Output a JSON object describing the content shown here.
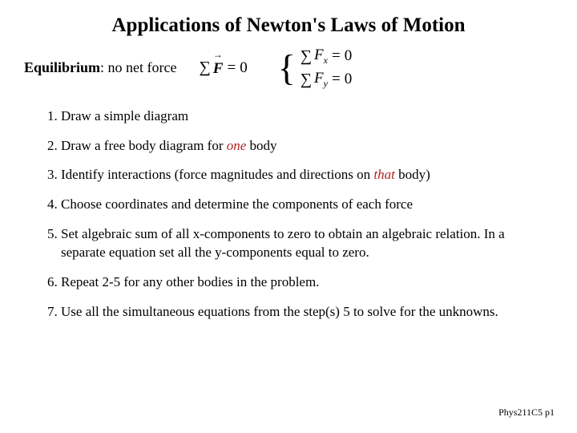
{
  "title": "Applications of Newton's Laws of Motion",
  "equilibrium": {
    "term": "Equilibrium",
    "rest": ": no net force"
  },
  "formula": {
    "sigma": "∑",
    "F": "F",
    "eq": "=",
    "zero": "0",
    "brace": "{",
    "Fx_label": "F",
    "Fx_sub": "x",
    "Fy_label": "F",
    "Fy_sub": "y"
  },
  "steps": [
    {
      "pre": "Draw a simple diagram",
      "emph": "",
      "post": ""
    },
    {
      "pre": "Draw a free body diagram for ",
      "emph": "one",
      "post": " body"
    },
    {
      "pre": "Identify interactions (force magnitudes and directions on ",
      "emph": "that",
      "post": " body)"
    },
    {
      "pre": "Choose coordinates and determine the components of each force",
      "emph": "",
      "post": ""
    },
    {
      "pre": "Set algebraic sum of all x-components to zero to obtain an algebraic relation. In a separate equation set all the y-components equal to zero.",
      "emph": "",
      "post": ""
    },
    {
      "pre": "Repeat 2-5 for any other bodies in the problem.",
      "emph": "",
      "post": ""
    },
    {
      "pre": "Use all the simultaneous equations from the step(s) 5 to solve for the unknowns.",
      "emph": "",
      "post": ""
    }
  ],
  "footer": "Phys211C5 p1",
  "colors": {
    "background": "#ffffff",
    "text": "#000000",
    "emphasis": "#b22222"
  },
  "typography": {
    "family": "Times New Roman",
    "title_size": 25,
    "body_size": 17,
    "formula_size": 19,
    "footer_size": 12
  }
}
